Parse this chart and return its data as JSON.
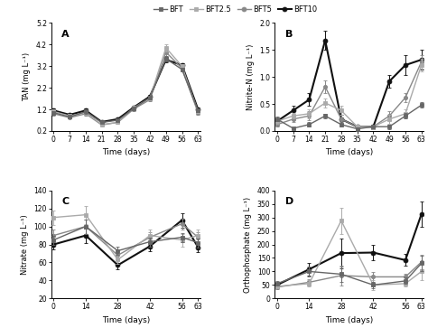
{
  "legend_labels": [
    "BFT",
    "BFT2.5",
    "BFT5",
    "BFT10"
  ],
  "colors": [
    "#666666",
    "#aaaaaa",
    "#888888",
    "#111111"
  ],
  "markers": [
    "s",
    "s",
    "o",
    "o"
  ],
  "linestyles": [
    "-",
    "-",
    "-",
    "-"
  ],
  "linewidths": [
    1.0,
    1.0,
    1.0,
    1.5
  ],
  "markersizes": [
    3.0,
    3.0,
    3.0,
    3.5
  ],
  "A_times": [
    0,
    7,
    14,
    21,
    28,
    35,
    42,
    49,
    56,
    63
  ],
  "A_BFT": [
    1.05,
    0.85,
    1.1,
    0.6,
    0.7,
    1.25,
    1.75,
    3.55,
    3.05,
    1.15
  ],
  "A_BFT25": [
    1.1,
    0.9,
    1.05,
    0.5,
    0.6,
    1.28,
    1.72,
    4.05,
    3.2,
    1.1
  ],
  "A_BFT5": [
    1.0,
    0.82,
    1.0,
    0.48,
    0.6,
    1.22,
    1.65,
    3.85,
    3.1,
    1.05
  ],
  "A_BFT10": [
    1.15,
    0.95,
    1.15,
    0.62,
    0.75,
    1.3,
    1.8,
    3.5,
    3.25,
    1.2
  ],
  "A_err_BFT": [
    0.08,
    0.04,
    0.1,
    0.04,
    0.04,
    0.08,
    0.08,
    0.12,
    0.08,
    0.08
  ],
  "A_err_BFT25": [
    0.08,
    0.04,
    0.08,
    0.04,
    0.04,
    0.08,
    0.08,
    0.18,
    0.08,
    0.08
  ],
  "A_err_BFT5": [
    0.08,
    0.04,
    0.08,
    0.04,
    0.04,
    0.08,
    0.08,
    0.18,
    0.08,
    0.08
  ],
  "A_err_BFT10": [
    0.08,
    0.04,
    0.08,
    0.04,
    0.04,
    0.08,
    0.08,
    0.12,
    0.08,
    0.08
  ],
  "A_ylabel": "TAN (mg L⁻¹)",
  "A_xlabel": "Time (days)",
  "A_ylim": [
    0.2,
    5.2
  ],
  "A_yticks": [
    0.2,
    1.2,
    2.2,
    3.2,
    4.2,
    5.2
  ],
  "A_xticks": [
    0,
    7,
    14,
    21,
    28,
    35,
    42,
    49,
    56,
    63
  ],
  "A_label": "A",
  "B_times": [
    0,
    7,
    14,
    21,
    28,
    35,
    42,
    49,
    56,
    63
  ],
  "B_BFT": [
    0.22,
    0.05,
    0.12,
    0.28,
    0.12,
    0.04,
    0.08,
    0.08,
    0.28,
    0.48
  ],
  "B_BFT25": [
    0.18,
    0.28,
    0.32,
    0.52,
    0.38,
    0.08,
    0.08,
    0.22,
    0.32,
    1.22
  ],
  "B_BFT5": [
    0.12,
    0.22,
    0.28,
    0.82,
    0.22,
    0.08,
    0.08,
    0.28,
    0.62,
    1.28
  ],
  "B_BFT10": [
    0.18,
    0.38,
    0.58,
    1.68,
    0.22,
    0.08,
    0.08,
    0.92,
    1.22,
    1.32
  ],
  "B_err_BFT": [
    0.04,
    0.02,
    0.04,
    0.04,
    0.04,
    0.02,
    0.02,
    0.04,
    0.05,
    0.05
  ],
  "B_err_BFT25": [
    0.04,
    0.05,
    0.08,
    0.08,
    0.08,
    0.04,
    0.04,
    0.08,
    0.08,
    0.12
  ],
  "B_err_BFT5": [
    0.04,
    0.05,
    0.08,
    0.12,
    0.08,
    0.04,
    0.04,
    0.08,
    0.08,
    0.12
  ],
  "B_err_BFT10": [
    0.04,
    0.08,
    0.12,
    0.18,
    0.08,
    0.04,
    0.04,
    0.12,
    0.18,
    0.18
  ],
  "B_ylabel": "Nitrite-N (mg L⁻¹)",
  "B_xlabel": "Time (days)",
  "B_ylim": [
    0,
    2.0
  ],
  "B_yticks": [
    0,
    0.5,
    1.0,
    1.5,
    2.0
  ],
  "B_xticks": [
    0,
    7,
    14,
    21,
    28,
    35,
    42,
    49,
    56,
    63
  ],
  "B_label": "B",
  "C_times": [
    0,
    14,
    28,
    42,
    56,
    63
  ],
  "C_BFT": [
    85,
    100,
    73,
    83,
    88,
    82
  ],
  "C_BFT25": [
    110,
    113,
    63,
    90,
    85,
    90
  ],
  "C_BFT5": [
    90,
    100,
    68,
    88,
    103,
    88
  ],
  "C_BFT10": [
    80,
    90,
    57,
    78,
    107,
    77
  ],
  "C_err_BFT": [
    5,
    8,
    5,
    5,
    5,
    5
  ],
  "C_err_BFT25": [
    8,
    10,
    5,
    7,
    7,
    7
  ],
  "C_err_BFT5": [
    7,
    8,
    5,
    6,
    6,
    6
  ],
  "C_err_BFT10": [
    5,
    8,
    5,
    5,
    8,
    5
  ],
  "C_ylabel": "Nitrate (mg L⁻¹)",
  "C_xlabel": "Time (days)",
  "C_ylim": [
    20,
    140
  ],
  "C_yticks": [
    20,
    40,
    60,
    80,
    100,
    120,
    140
  ],
  "C_xticks": [
    0,
    14,
    28,
    42,
    56,
    63
  ],
  "C_label": "C",
  "D_times": [
    0,
    14,
    28,
    42,
    56,
    63
  ],
  "D_BFT": [
    55,
    100,
    90,
    50,
    65,
    130
  ],
  "D_BFT25": [
    45,
    55,
    288,
    50,
    55,
    100
  ],
  "D_BFT5": [
    42,
    60,
    85,
    80,
    80,
    135
  ],
  "D_BFT10": [
    50,
    108,
    168,
    170,
    142,
    312
  ],
  "D_err_BFT": [
    8,
    18,
    28,
    12,
    12,
    28
  ],
  "D_err_BFT25": [
    8,
    12,
    48,
    18,
    12,
    32
  ],
  "D_err_BFT5": [
    8,
    12,
    38,
    18,
    12,
    28
  ],
  "D_err_BFT10": [
    8,
    22,
    55,
    28,
    22,
    48
  ],
  "D_ylabel": "Orthophosphate (mg L⁻¹)",
  "D_xlabel": "Time (days)",
  "D_ylim": [
    0,
    400
  ],
  "D_yticks": [
    0,
    50,
    100,
    150,
    200,
    250,
    300,
    350,
    400
  ],
  "D_xticks": [
    0,
    14,
    28,
    42,
    56,
    63
  ],
  "D_label": "D"
}
